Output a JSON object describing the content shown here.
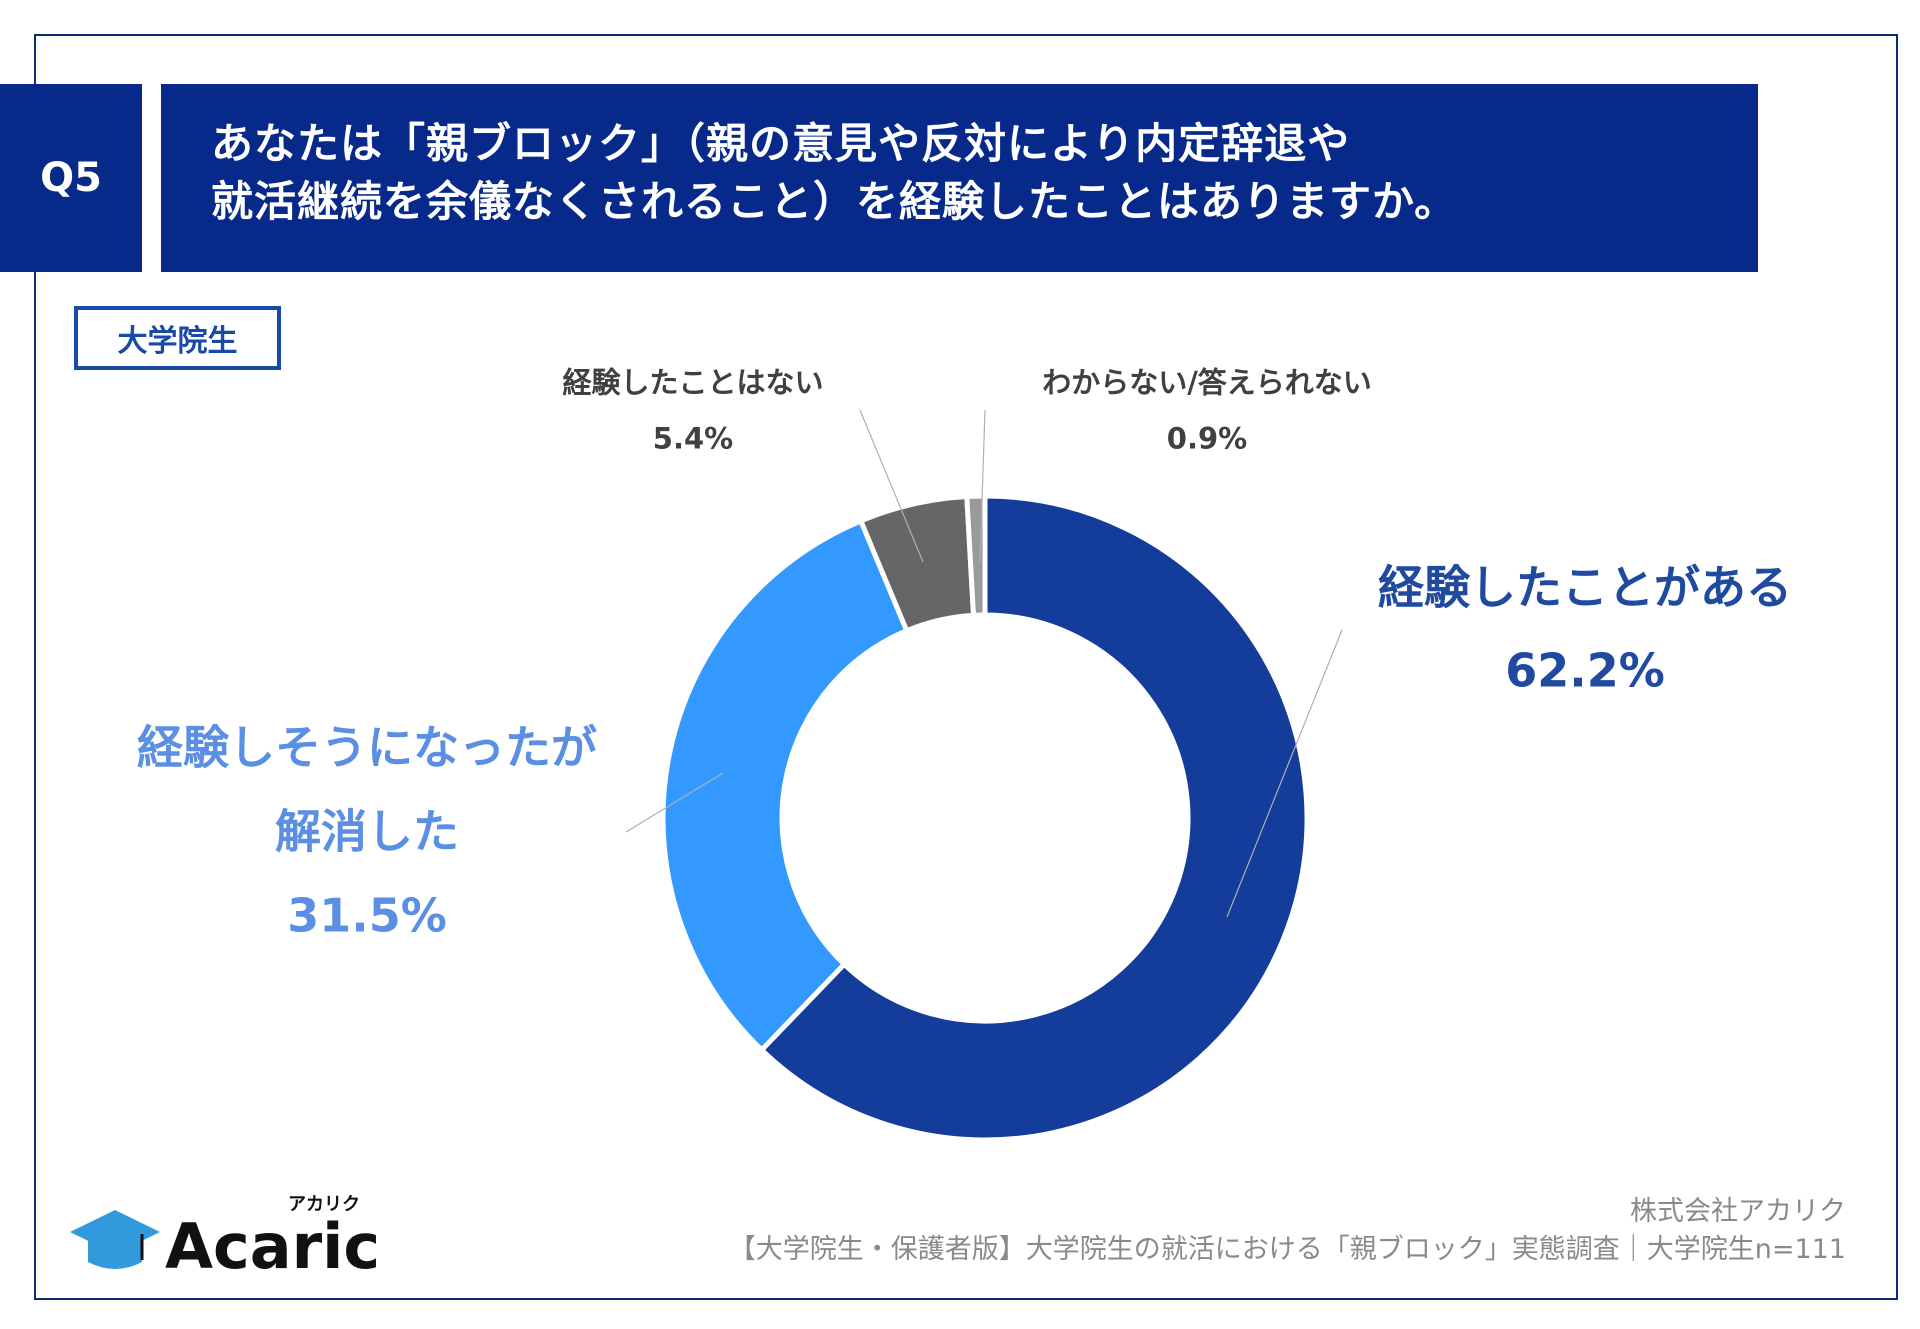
{
  "header": {
    "question_no": "Q5",
    "question_line1": "あなたは「親ブロック」（親の意見や反対により内定辞退や",
    "question_line2": "就活継続を余儀なくされること）を経験したことはありますか。"
  },
  "segment_tag": "大学院生",
  "chart_data": {
    "type": "pie",
    "variant": "donut",
    "categories": [
      "経験したことがある",
      "経験しそうになったが解消した",
      "経験したことはない",
      "わからない/答えられない"
    ],
    "values": [
      62.2,
      31.5,
      5.4,
      0.9
    ],
    "unit": "%",
    "colors": [
      "#143c9a",
      "#3399ff",
      "#666666",
      "#9a9a9a"
    ],
    "labels": [
      {
        "lines": [
          "経験したことがある"
        ],
        "value": "62.2%"
      },
      {
        "lines": [
          "経験しそうになったが",
          "解消した"
        ],
        "value": "31.5%"
      },
      {
        "lines": [
          "経験したことはない"
        ],
        "value": "5.4%"
      },
      {
        "lines": [
          "わからない/答えられない"
        ],
        "value": "0.9%"
      }
    ]
  },
  "footer": {
    "company": "株式会社アカリク",
    "source": "【大学院生・保護者版】大学院生の就活における「親ブロック」実態調査｜大学院生n=111"
  },
  "logo": {
    "text": "Acaric",
    "kana": "アカリク"
  }
}
